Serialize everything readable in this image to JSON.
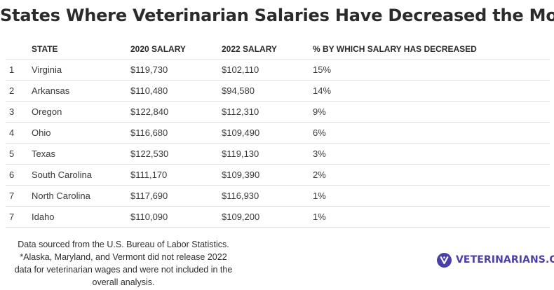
{
  "title": "States Where Veterinarian Salaries Have Decreased the Most",
  "table": {
    "headers": [
      "",
      "STATE",
      "2020 SALARY",
      "2022 SALARY",
      "% BY WHICH SALARY HAS DECREASED"
    ],
    "rows": [
      [
        "1",
        "Virginia",
        "$119,730",
        "$102,110",
        "15%"
      ],
      [
        "2",
        "Arkansas",
        "$110,480",
        "$94,580",
        "14%"
      ],
      [
        "3",
        "Oregon",
        "$122,840",
        "$112,310",
        "9%"
      ],
      [
        "4",
        "Ohio",
        "$116,680",
        "$109,490",
        "6%"
      ],
      [
        "5",
        "Texas",
        "$122,530",
        "$119,130",
        "3%"
      ],
      [
        "6",
        "South Carolina",
        "$111,170",
        "$109,390",
        "2%"
      ],
      [
        "7",
        "North Carolina",
        "$117,690",
        "$116,930",
        "1%"
      ],
      [
        "7",
        "Idaho",
        "$110,090",
        "$109,200",
        "1%"
      ]
    ]
  },
  "footnote": {
    "lines": [
      "Data sourced from the U.S. Bureau of Labor Statistics.",
      "*Alaska, Maryland, and Vermont did not release 2022",
      "data for veterinarian wages and were not included in the",
      "overall analysis."
    ]
  },
  "brand": {
    "name": "VETERINARIANS.ORG",
    "icon": "veterinarians-logo-icon",
    "color": "#4b3fa8"
  }
}
